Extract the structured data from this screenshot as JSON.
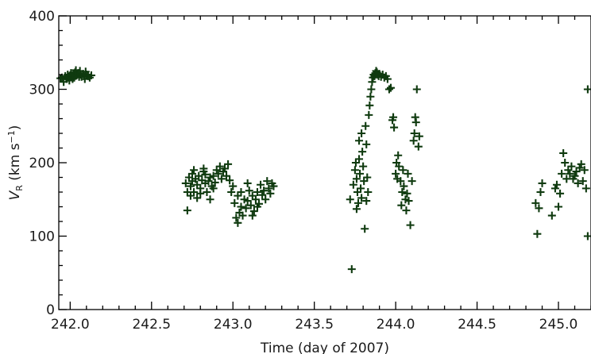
{
  "chart_data": {
    "type": "scatter",
    "title": "",
    "xlabel": "Time (day of 2007)",
    "ylabel": {
      "var": "V",
      "sub": "R",
      "unit_open": " (km s",
      "unit_sup": "−1",
      "unit_close": ")"
    },
    "xlim": [
      241.93,
      245.2
    ],
    "ylim": [
      0,
      400
    ],
    "xticks": [
      242.0,
      242.5,
      243.0,
      243.5,
      244.0,
      244.5,
      245.0
    ],
    "xtick_labels": [
      "242.0",
      "242.5",
      "243.0",
      "243.5",
      "244.0",
      "244.5",
      "245.0"
    ],
    "yticks": [
      0,
      100,
      200,
      300,
      400
    ],
    "ytick_labels": [
      "0",
      "100",
      "200",
      "300",
      "400"
    ],
    "marker": "plus",
    "color": "#0f3a0f",
    "grid": false,
    "legend": "none",
    "series": [
      {
        "points": [
          [
            241.94,
            315
          ],
          [
            241.95,
            316
          ],
          [
            241.96,
            310
          ],
          [
            241.97,
            318
          ],
          [
            241.98,
            314
          ],
          [
            241.985,
            320
          ],
          [
            241.99,
            316
          ],
          [
            242.0,
            319
          ],
          [
            242.005,
            322
          ],
          [
            242.01,
            318
          ],
          [
            242.02,
            321
          ],
          [
            242.025,
            316
          ],
          [
            242.03,
            323
          ],
          [
            242.04,
            319
          ],
          [
            242.05,
            322
          ],
          [
            242.06,
            325
          ],
          [
            242.065,
            320
          ],
          [
            242.07,
            317
          ],
          [
            242.08,
            321
          ],
          [
            242.085,
            318
          ],
          [
            242.09,
            314
          ],
          [
            242.1,
            320
          ],
          [
            242.11,
            318
          ],
          [
            242.12,
            316
          ],
          [
            242.13,
            319
          ],
          [
            241.995,
            312
          ],
          [
            242.015,
            314
          ],
          [
            242.035,
            326
          ],
          [
            242.055,
            317
          ],
          [
            242.095,
            324
          ],
          [
            242.71,
            172
          ],
          [
            242.72,
            135
          ],
          [
            242.72,
            160
          ],
          [
            242.73,
            180
          ],
          [
            242.74,
            168
          ],
          [
            242.75,
            175
          ],
          [
            242.75,
            185
          ],
          [
            242.76,
            160
          ],
          [
            242.77,
            178
          ],
          [
            242.78,
            170
          ],
          [
            242.79,
            182
          ],
          [
            242.8,
            165
          ],
          [
            242.81,
            176
          ],
          [
            242.82,
            188
          ],
          [
            242.83,
            172
          ],
          [
            242.84,
            160
          ],
          [
            242.85,
            175
          ],
          [
            242.86,
            180
          ],
          [
            242.87,
            168
          ],
          [
            242.88,
            182
          ],
          [
            242.89,
            173
          ],
          [
            242.9,
            190
          ],
          [
            242.91,
            185
          ],
          [
            242.92,
            195
          ],
          [
            242.93,
            178
          ],
          [
            242.94,
            188
          ],
          [
            242.95,
            192
          ],
          [
            242.96,
            182
          ],
          [
            242.97,
            198
          ],
          [
            242.98,
            176
          ],
          [
            242.99,
            160
          ],
          [
            243.0,
            168
          ],
          [
            242.76,
            190
          ],
          [
            242.78,
            152
          ],
          [
            242.8,
            158
          ],
          [
            242.83,
            184
          ],
          [
            242.86,
            150
          ],
          [
            242.88,
            165
          ],
          [
            242.74,
            155
          ],
          [
            242.82,
            192
          ],
          [
            243.01,
            145
          ],
          [
            243.02,
            125
          ],
          [
            243.03,
            118
          ],
          [
            243.04,
            132
          ],
          [
            243.05,
            140
          ],
          [
            243.06,
            128
          ],
          [
            243.07,
            150
          ],
          [
            243.08,
            138
          ],
          [
            243.09,
            148
          ],
          [
            243.1,
            162
          ],
          [
            243.11,
            142
          ],
          [
            243.12,
            155
          ],
          [
            243.13,
            134
          ],
          [
            243.14,
            150
          ],
          [
            243.15,
            160
          ],
          [
            243.16,
            144
          ],
          [
            243.17,
            170
          ],
          [
            243.18,
            156
          ],
          [
            243.19,
            162
          ],
          [
            243.2,
            150
          ],
          [
            243.21,
            175
          ],
          [
            243.22,
            165
          ],
          [
            243.23,
            158
          ],
          [
            243.24,
            172
          ],
          [
            243.25,
            168
          ],
          [
            243.03,
            155
          ],
          [
            243.05,
            160
          ],
          [
            243.09,
            172
          ],
          [
            243.12,
            128
          ],
          [
            243.15,
            140
          ],
          [
            243.72,
            150
          ],
          [
            243.73,
            55
          ],
          [
            243.74,
            170
          ],
          [
            243.75,
            190
          ],
          [
            243.755,
            200
          ],
          [
            243.76,
            178
          ],
          [
            243.765,
            160
          ],
          [
            243.77,
            145
          ],
          [
            243.775,
            205
          ],
          [
            243.78,
            185
          ],
          [
            243.785,
            165
          ],
          [
            243.79,
            240
          ],
          [
            243.795,
            215
          ],
          [
            243.8,
            195
          ],
          [
            243.805,
            175
          ],
          [
            243.81,
            110
          ],
          [
            243.815,
            250
          ],
          [
            243.82,
            225
          ],
          [
            243.825,
            180
          ],
          [
            243.83,
            160
          ],
          [
            243.835,
            265
          ],
          [
            243.84,
            278
          ],
          [
            243.845,
            290
          ],
          [
            243.85,
            300
          ],
          [
            243.855,
            310
          ],
          [
            243.86,
            316
          ],
          [
            243.865,
            320
          ],
          [
            243.87,
            318
          ],
          [
            243.875,
            322
          ],
          [
            243.88,
            325
          ],
          [
            243.885,
            323
          ],
          [
            243.89,
            320
          ],
          [
            243.895,
            318
          ],
          [
            243.9,
            321
          ],
          [
            243.91,
            317
          ],
          [
            243.92,
            320
          ],
          [
            243.93,
            316
          ],
          [
            243.94,
            318
          ],
          [
            243.95,
            314
          ],
          [
            243.96,
            300
          ],
          [
            243.97,
            302
          ],
          [
            243.98,
            258
          ],
          [
            243.985,
            262
          ],
          [
            243.99,
            248
          ],
          [
            244.0,
            185
          ],
          [
            244.01,
            178
          ],
          [
            244.015,
            210
          ],
          [
            244.02,
            195
          ],
          [
            244.03,
            175
          ],
          [
            244.04,
            160
          ],
          [
            244.045,
            190
          ],
          [
            244.05,
            168
          ],
          [
            244.06,
            150
          ],
          [
            244.065,
            135
          ],
          [
            244.07,
            158
          ],
          [
            244.08,
            148
          ],
          [
            244.09,
            115
          ],
          [
            244.1,
            175
          ],
          [
            244.11,
            230
          ],
          [
            244.115,
            240
          ],
          [
            244.12,
            262
          ],
          [
            244.125,
            255
          ],
          [
            244.13,
            300
          ],
          [
            244.14,
            222
          ],
          [
            244.145,
            236
          ],
          [
            243.76,
            137
          ],
          [
            243.79,
            152
          ],
          [
            243.82,
            148
          ],
          [
            244.035,
            142
          ],
          [
            244.075,
            185
          ],
          [
            244.005,
            200
          ],
          [
            243.775,
            230
          ],
          [
            244.86,
            145
          ],
          [
            244.87,
            103
          ],
          [
            244.88,
            138
          ],
          [
            244.89,
            160
          ],
          [
            244.9,
            172
          ],
          [
            244.96,
            128
          ],
          [
            244.98,
            165
          ],
          [
            244.99,
            170
          ],
          [
            245.0,
            140
          ],
          [
            245.01,
            158
          ],
          [
            245.02,
            185
          ],
          [
            245.03,
            213
          ],
          [
            245.04,
            200
          ],
          [
            245.05,
            178
          ],
          [
            245.06,
            190
          ],
          [
            245.07,
            185
          ],
          [
            245.08,
            195
          ],
          [
            245.09,
            178
          ],
          [
            245.1,
            182
          ],
          [
            245.11,
            188
          ],
          [
            245.12,
            172
          ],
          [
            245.13,
            193
          ],
          [
            245.14,
            198
          ],
          [
            245.15,
            175
          ],
          [
            245.16,
            190
          ],
          [
            245.17,
            165
          ],
          [
            245.18,
            300
          ],
          [
            245.18,
            100
          ]
        ]
      }
    ]
  }
}
